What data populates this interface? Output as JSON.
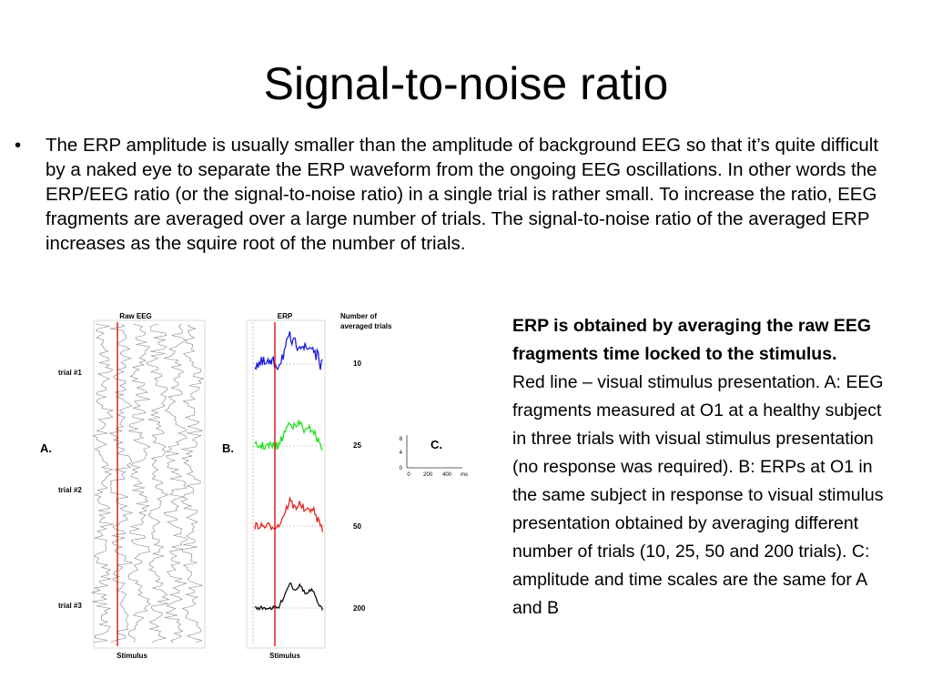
{
  "slide": {
    "title": "Signal-to-noise ratio",
    "bullet_marker": "•",
    "bullet_text": "The ERP amplitude is usually smaller than the amplitude of background EEG so that it’s quite difficult by a naked eye to separate the ERP waveform from the ongoing EEG oscillations.  In other words the ERP/EEG ratio (or the signal-to-noise ratio) in a single trial is rather small. To increase the ratio, EEG fragments are averaged over a large number of trials.  The signal-to-noise ratio of the averaged ERP increases as the squire root of the number of trials."
  },
  "figure": {
    "panel_a": {
      "letter": "A.",
      "header": "Raw EEG",
      "trial_labels": [
        "trial #1",
        "trial #2",
        "trial #3"
      ],
      "footer": "Stimulus",
      "trace_color": "#808080"
    },
    "panel_b": {
      "letter": "B.",
      "header": "ERP",
      "count_header_line1": "Number of",
      "count_header_line2": "averaged trials",
      "counts": [
        "10",
        "25",
        "50",
        "200"
      ],
      "footer": "Stimulus",
      "trace_colors": [
        "#1a1adc",
        "#22e022",
        "#e62222",
        "#111111"
      ]
    },
    "panel_c": {
      "letter": "C.",
      "y_ticks": [
        "8",
        "4",
        "0"
      ],
      "x_ticks": [
        "0",
        "200",
        "400"
      ],
      "x_unit": "ms"
    },
    "stimulus_line_color": "#dd1111"
  },
  "caption": {
    "heading": "ERP is obtained by averaging the raw EEG fragments time locked to the stimulus.",
    "body": "Red line – visual stimulus presentation. A: EEG fragments measured at O1 at a healthy subject in three trials with visual stimulus presentation (no response was required).  B: ERPs at O1 in the same subject in response to visual stimulus presentation obtained by averaging different number of trials (10, 25, 50 and 200 trials).  C: amplitude and time scales are the same for A and B"
  }
}
